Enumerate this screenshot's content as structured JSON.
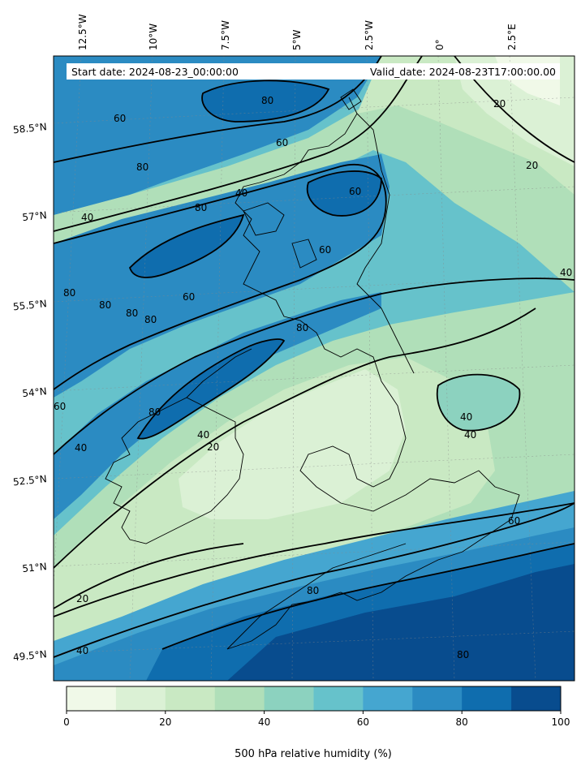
{
  "map": {
    "start_label": "Start date: 2024-08-23_00:00:00",
    "valid_label": "Valid_date: 2024-08-23T17:00:00.00",
    "lon_ticks": [
      "12.5°W",
      "10°W",
      "7.5°W",
      "5°W",
      "2.5°W",
      "0°",
      "2.5°E"
    ],
    "lat_ticks": [
      "58.5°N",
      "57°N",
      "55.5°N",
      "54°N",
      "52.5°N",
      "51°N",
      "49.5°N"
    ],
    "variable": "500 hPa relative humidity",
    "contour_levels": [
      20,
      40,
      60,
      80
    ],
    "contour_labels": [
      "80",
      "60",
      "80",
      "40",
      "60",
      "80",
      "40",
      "20",
      "80",
      "80",
      "80",
      "80",
      "60",
      "60",
      "80",
      "60",
      "80",
      "40",
      "40",
      "20",
      "60",
      "40",
      "40",
      "60",
      "80",
      "20",
      "40",
      "80",
      "20",
      "40"
    ],
    "colorbar": {
      "label": "500 hPa relative humidity (%)",
      "range": [
        0,
        100
      ],
      "ticks": [
        "0",
        "20",
        "40",
        "60",
        "80",
        "100"
      ],
      "colors": [
        "#f0f9e8",
        "#dbf1d5",
        "#c9e9c3",
        "#b0dfb9",
        "#8cd2bf",
        "#66c2cb",
        "#45a6d0",
        "#2b8bc2",
        "#0f6dae",
        "#084c8e"
      ]
    }
  }
}
